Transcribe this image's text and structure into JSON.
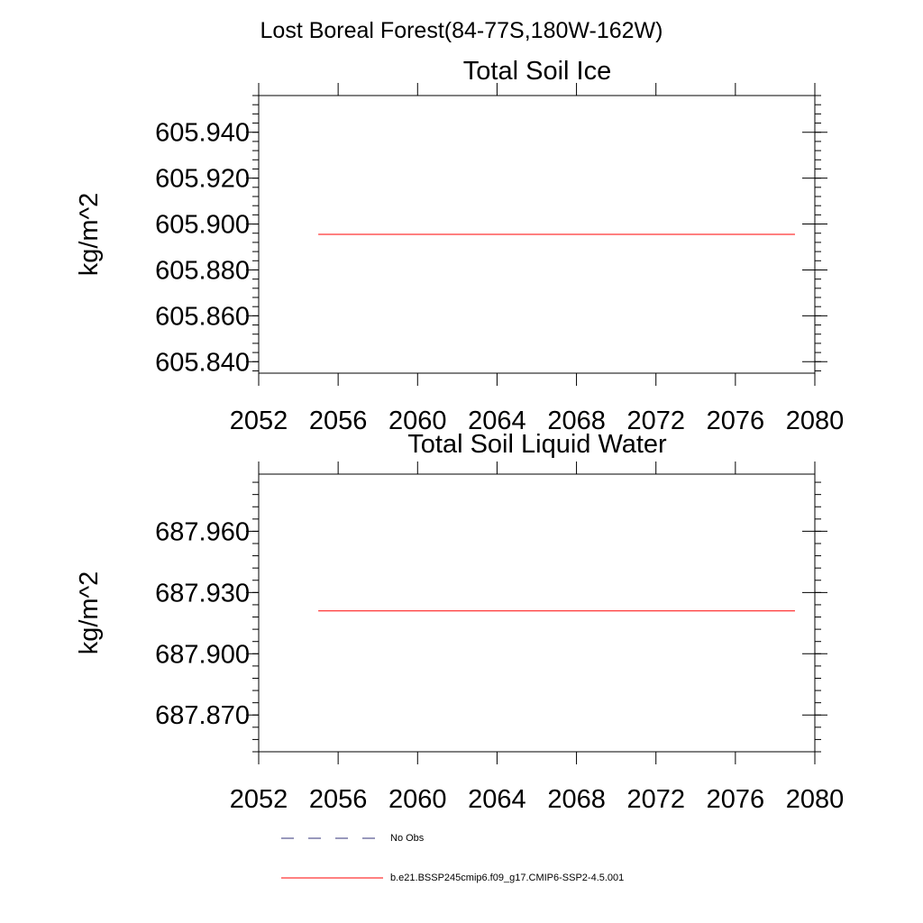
{
  "figure": {
    "title": "Lost Boreal Forest(84-77S,180W-162W)"
  },
  "chart_data": [
    {
      "type": "line",
      "title": "Total Soil Ice",
      "ylabel": "kg/m^2",
      "xlabel": "",
      "xlim": [
        2052,
        2080
      ],
      "ylim": [
        605.835,
        605.956
      ],
      "x_ticks": [
        "2052",
        "2056",
        "2060",
        "2064",
        "2068",
        "2072",
        "2076",
        "2080"
      ],
      "y_ticks": [
        "605.840",
        "605.860",
        "605.880",
        "605.900",
        "605.920",
        "605.940"
      ],
      "grid": false,
      "series": [
        {
          "name": "b.e21.BSSP245cmip6.f09_g17.CMIP6-SSP2-4.5.001",
          "color": "#ff0000",
          "x": [
            2055,
            2079
          ],
          "y": [
            605.8955,
            605.8955
          ]
        }
      ]
    },
    {
      "type": "line",
      "title": "Total Soil Liquid Water",
      "ylabel": "kg/m^2",
      "xlabel": "",
      "xlim": [
        2052,
        2080
      ],
      "ylim": [
        687.852,
        687.988
      ],
      "x_ticks": [
        "2052",
        "2056",
        "2060",
        "2064",
        "2068",
        "2072",
        "2076",
        "2080"
      ],
      "y_ticks": [
        "687.870",
        "687.900",
        "687.930",
        "687.960"
      ],
      "grid": false,
      "series": [
        {
          "name": "b.e21.BSSP245cmip6.f09_g17.CMIP6-SSP2-4.5.001",
          "color": "#ff0000",
          "x": [
            2055,
            2079
          ],
          "y": [
            687.921,
            687.921
          ]
        }
      ]
    }
  ],
  "legend": {
    "placement": "bottom-left",
    "items": [
      {
        "label": "No Obs",
        "color": "#33337a",
        "style": "dashed"
      },
      {
        "label": "b.e21.BSSP245cmip6.f09_g17.CMIP6-SSP2-4.5.001",
        "color": "#ff0000",
        "style": "solid"
      }
    ]
  }
}
